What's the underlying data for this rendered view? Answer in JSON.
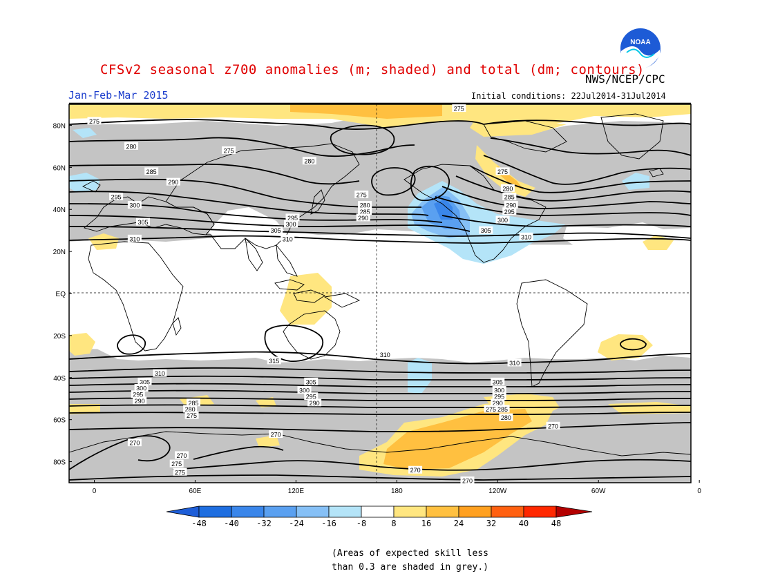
{
  "title": "CFSv2 seasonal z700 anomalies (m; shaded) and total (dm; contours)",
  "agency": "NWS/NCEP/CPC",
  "logo_text": "NOAA",
  "season": "Jan-Feb-Mar 2015",
  "initial_conditions": "Initial conditions: 22Jul2014-31Jul2014",
  "note_line1": "(Areas of expected skill less",
  "note_line2": "than 0.3 are shaded in grey.)",
  "colors": {
    "skill_grey": "#c4c4c4",
    "contour": "#000000",
    "title": "#e00000",
    "season": "#1a3ccc"
  },
  "map": {
    "lon_labels": [
      "0",
      "60E",
      "120E",
      "180",
      "120W",
      "60W",
      "0"
    ],
    "lat_labels": [
      "80N",
      "60N",
      "40N",
      "20N",
      "EQ",
      "20S",
      "40S",
      "60S",
      "80S"
    ],
    "contour_labels": [
      {
        "text": "275",
        "lon": 0,
        "lat": 82
      },
      {
        "text": "280",
        "lon": 22,
        "lat": 70
      },
      {
        "text": "285",
        "lon": 34,
        "lat": 58
      },
      {
        "text": "290",
        "lon": 47,
        "lat": 53
      },
      {
        "text": "295",
        "lon": 13,
        "lat": 46
      },
      {
        "text": "300",
        "lon": 24,
        "lat": 42
      },
      {
        "text": "305",
        "lon": 29,
        "lat": 34
      },
      {
        "text": "310",
        "lon": 24,
        "lat": 26
      },
      {
        "text": "275",
        "lon": 80,
        "lat": 68
      },
      {
        "text": "280",
        "lon": 128,
        "lat": 63
      },
      {
        "text": "275",
        "lon": 159,
        "lat": 47
      },
      {
        "text": "280",
        "lon": 161,
        "lat": 42
      },
      {
        "text": "285",
        "lon": 161,
        "lat": 39
      },
      {
        "text": "290",
        "lon": 160,
        "lat": 36
      },
      {
        "text": "295",
        "lon": 118,
        "lat": 36
      },
      {
        "text": "300",
        "lon": 117,
        "lat": 33
      },
      {
        "text": "305",
        "lon": 108,
        "lat": 30
      },
      {
        "text": "310",
        "lon": 115,
        "lat": 26
      },
      {
        "text": "275",
        "lon": 243,
        "lat": 58
      },
      {
        "text": "280",
        "lon": 246,
        "lat": 50
      },
      {
        "text": "285",
        "lon": 247,
        "lat": 46
      },
      {
        "text": "290",
        "lon": 248,
        "lat": 42
      },
      {
        "text": "295",
        "lon": 247,
        "lat": 39
      },
      {
        "text": "300",
        "lon": 243,
        "lat": 35
      },
      {
        "text": "305",
        "lon": 233,
        "lat": 30
      },
      {
        "text": "310",
        "lon": 257,
        "lat": 27
      },
      {
        "text": "275",
        "lon": 217,
        "lat": 88
      },
      {
        "text": "315",
        "lon": 107,
        "lat": -32
      },
      {
        "text": "310",
        "lon": 173,
        "lat": -29
      },
      {
        "text": "310",
        "lon": 39,
        "lat": -38
      },
      {
        "text": "310",
        "lon": 250,
        "lat": -33
      },
      {
        "text": "305",
        "lon": 30,
        "lat": -42
      },
      {
        "text": "300",
        "lon": 28,
        "lat": -45
      },
      {
        "text": "295",
        "lon": 26,
        "lat": -48
      },
      {
        "text": "290",
        "lon": 27,
        "lat": -51
      },
      {
        "text": "285",
        "lon": 59,
        "lat": -52
      },
      {
        "text": "280",
        "lon": 57,
        "lat": -55
      },
      {
        "text": "275",
        "lon": 58,
        "lat": -58
      },
      {
        "text": "305",
        "lon": 129,
        "lat": -42
      },
      {
        "text": "300",
        "lon": 125,
        "lat": -46
      },
      {
        "text": "295",
        "lon": 129,
        "lat": -49
      },
      {
        "text": "290",
        "lon": 131,
        "lat": -52
      },
      {
        "text": "305",
        "lon": 240,
        "lat": -42
      },
      {
        "text": "300",
        "lon": 241,
        "lat": -46
      },
      {
        "text": "295",
        "lon": 241,
        "lat": -49
      },
      {
        "text": "290",
        "lon": 240,
        "lat": -52
      },
      {
        "text": "285",
        "lon": 243,
        "lat": -55
      },
      {
        "text": "280",
        "lon": 245,
        "lat": -59
      },
      {
        "text": "275",
        "lon": 236,
        "lat": -55
      },
      {
        "text": "270",
        "lon": 273,
        "lat": -63
      },
      {
        "text": "270",
        "lon": 108,
        "lat": -67
      },
      {
        "text": "270",
        "lon": 24,
        "lat": -71
      },
      {
        "text": "270",
        "lon": 52,
        "lat": -77
      },
      {
        "text": "275",
        "lon": 49,
        "lat": -81
      },
      {
        "text": "275",
        "lon": 51,
        "lat": -85
      },
      {
        "text": "270",
        "lon": 191,
        "lat": -84
      },
      {
        "text": "270",
        "lon": 222,
        "lat": -89
      }
    ]
  },
  "colorbar": {
    "labels": [
      "-48",
      "-40",
      "-32",
      "-24",
      "-16",
      "-8",
      "8",
      "16",
      "24",
      "32",
      "40",
      "48"
    ],
    "colors": [
      "#1e6ee0",
      "#3a86ea",
      "#5aa0f0",
      "#86c0f6",
      "#b4e4f8",
      "#ffffff",
      "#ffe680",
      "#ffc040",
      "#ffa020",
      "#ff6010",
      "#ff2800",
      "#d80000"
    ],
    "left_tip": "#1e5ed8",
    "right_tip": "#b40000"
  }
}
